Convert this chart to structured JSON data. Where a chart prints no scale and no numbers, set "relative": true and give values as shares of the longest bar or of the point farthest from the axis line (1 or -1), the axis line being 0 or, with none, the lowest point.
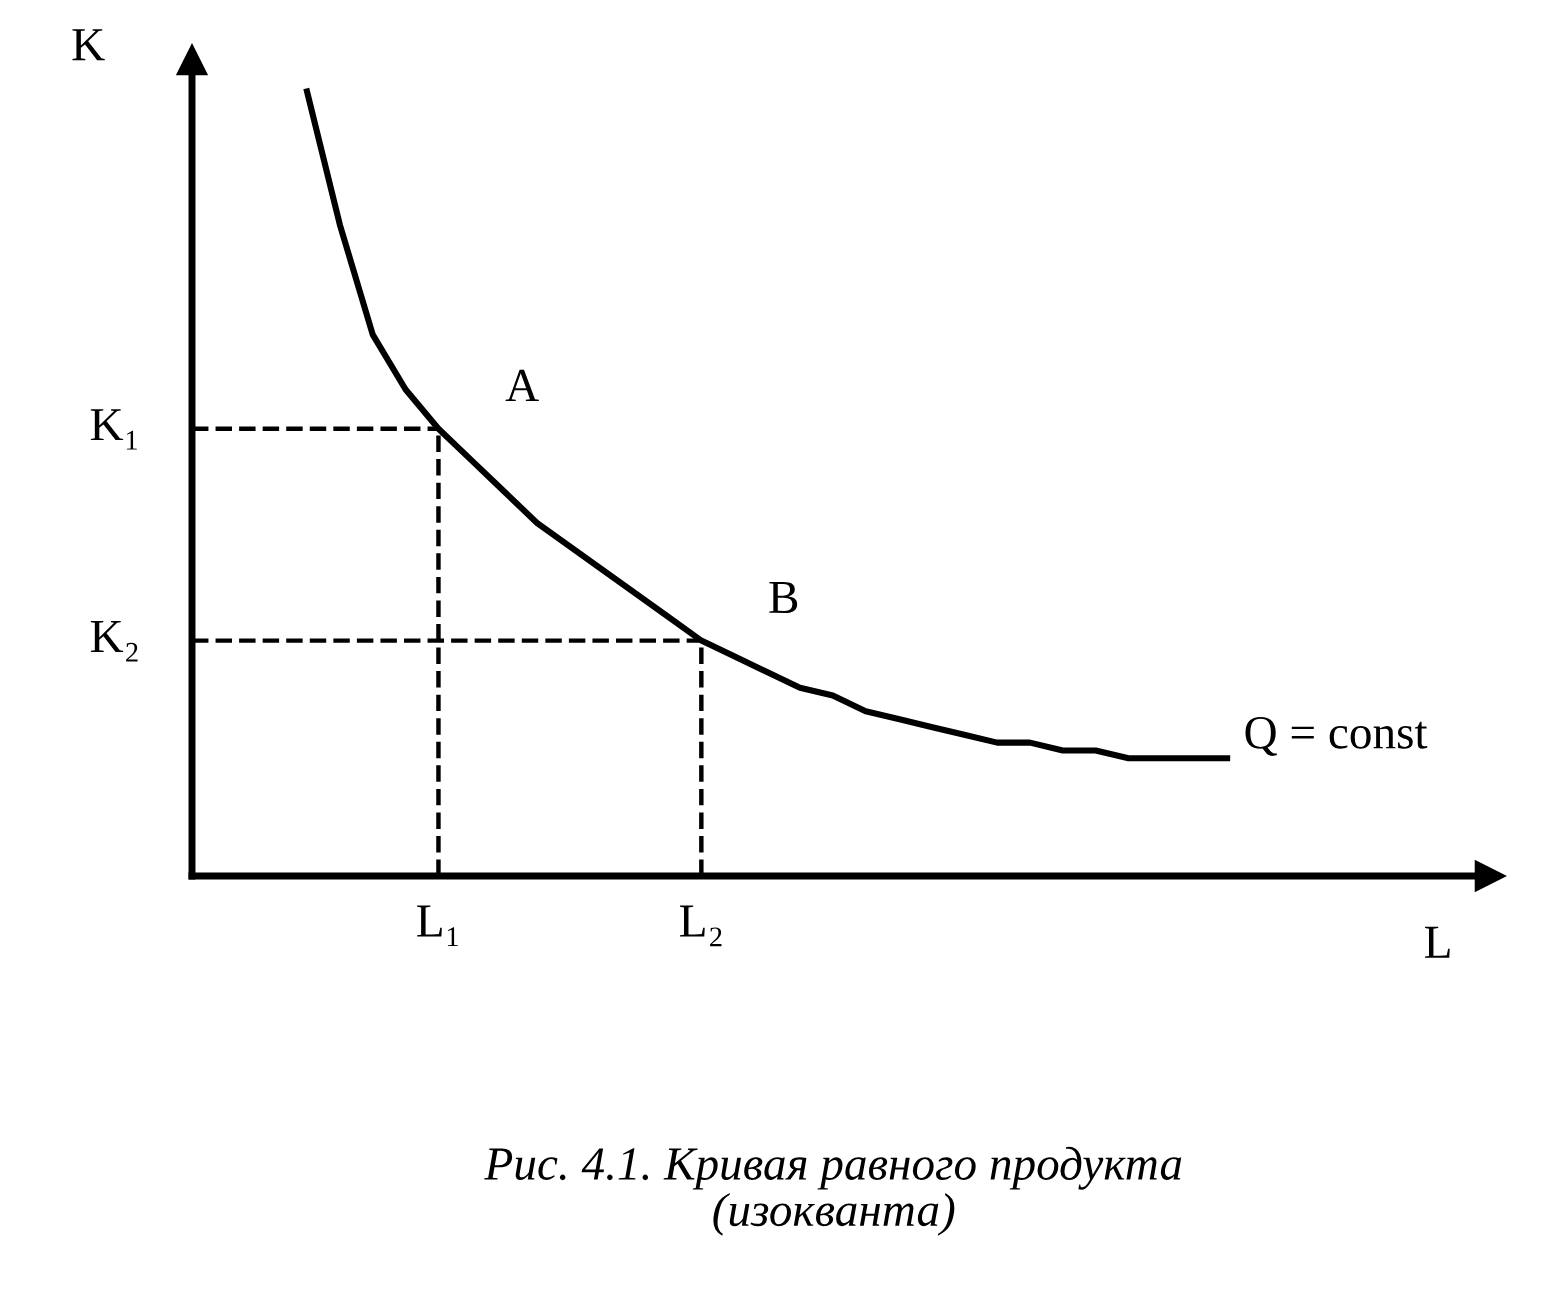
{
  "chart_data": {
    "type": "line",
    "relative": true,
    "title": "Рис. 4.1. Кривая равного продукта\n(изокванта)",
    "xlabel": "L",
    "ylabel": "K",
    "categories": [
      null,
      null,
      null,
      null,
      "L₁",
      null,
      null,
      null,
      null,
      null,
      null,
      null,
      "L₂",
      null,
      null,
      null,
      null,
      null,
      null,
      null,
      null,
      null,
      null,
      null,
      null,
      null,
      null,
      null,
      null
    ],
    "series": [
      {
        "name": "Q = const",
        "color": "#000000",
        "values": [
          1.0,
          0.83,
          0.69,
          0.62,
          0.57,
          0.53,
          0.49,
          0.45,
          0.42,
          0.39,
          0.36,
          0.33,
          0.3,
          0.28,
          0.26,
          0.24,
          0.23,
          0.21,
          0.2,
          0.19,
          0.18,
          0.17,
          0.17,
          0.16,
          0.16,
          0.15,
          0.15,
          0.15,
          0.15
        ]
      }
    ],
    "ref_lines": [
      {
        "axis": "y",
        "value": 0.57,
        "label": "K₁",
        "line_style": "dashed",
        "color": "#000000"
      },
      {
        "axis": "y",
        "value": 0.3,
        "label": "K₂",
        "line_style": "dashed",
        "color": "#000000"
      },
      {
        "axis": "x",
        "value": "L₁",
        "line_style": "dashed",
        "color": "#000000"
      },
      {
        "axis": "x",
        "value": "L₂",
        "line_style": "dashed",
        "color": "#000000"
      }
    ],
    "annotations": [
      {
        "text": "A",
        "x": "L₁",
        "y": 0.57
      },
      {
        "text": "B",
        "x": "L₂",
        "y": 0.3
      }
    ],
    "legend": false,
    "grid": false,
    "marker": "none",
    "line_style": "solid"
  }
}
